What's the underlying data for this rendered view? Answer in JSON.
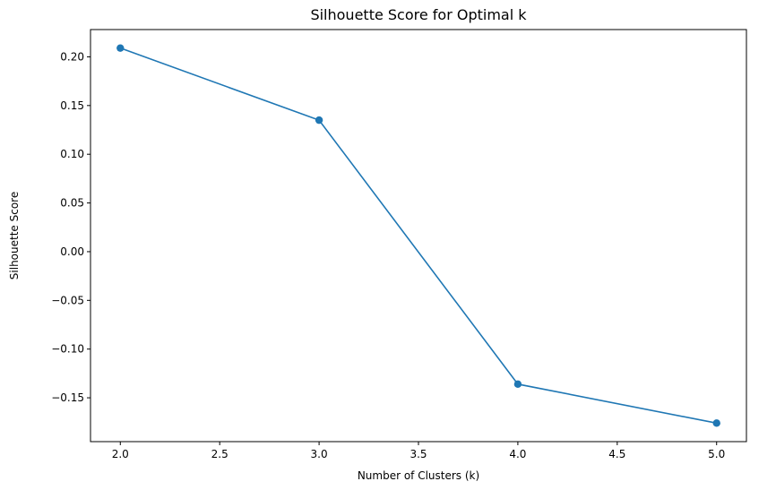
{
  "chart_data": {
    "type": "line",
    "title": "Silhouette Score for Optimal k",
    "xlabel": "Number of Clusters (k)",
    "ylabel": "Silhouette Score",
    "x": [
      2,
      3,
      4,
      5
    ],
    "series": [
      {
        "values": [
          0.209,
          0.135,
          -0.136,
          -0.176
        ]
      }
    ],
    "xlim": [
      1.85,
      5.15
    ],
    "ylim": [
      -0.195,
      0.228
    ],
    "xticks": [
      "2.0",
      "2.5",
      "3.0",
      "3.5",
      "4.0",
      "4.5",
      "5.0"
    ],
    "yticks": [
      "0.20",
      "0.15",
      "0.10",
      "0.05",
      "0.00",
      "−0.05",
      "−0.10",
      "−0.15"
    ],
    "xtick_values": [
      2.0,
      2.5,
      3.0,
      3.5,
      4.0,
      4.5,
      5.0
    ],
    "ytick_values": [
      0.2,
      0.15,
      0.1,
      0.05,
      0.0,
      -0.05,
      -0.1,
      -0.15
    ],
    "marker": "circle",
    "grid": false,
    "colors": {
      "line": "#1f77b4",
      "axes": "#000000",
      "background": "#ffffff"
    }
  }
}
